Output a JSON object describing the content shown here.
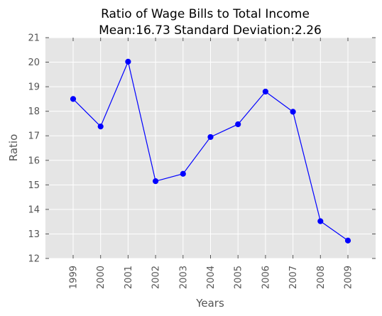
{
  "chart_data": {
    "type": "line",
    "title": "Ratio of Wage Bills to Total Income",
    "subtitle": "Mean:16.73 Standard Deviation:2.26",
    "xlabel": "Years",
    "ylabel": "Ratio",
    "ylim": [
      12,
      21
    ],
    "yticks": [
      "12",
      "13",
      "14",
      "15",
      "16",
      "17",
      "18",
      "19",
      "20",
      "21"
    ],
    "categories": [
      "1999",
      "2000",
      "2001",
      "2002",
      "2003",
      "2004",
      "2005",
      "2006",
      "2007",
      "2008",
      "2009"
    ],
    "series": [
      {
        "values": [
          18.5,
          17.38,
          20.02,
          15.15,
          15.45,
          16.95,
          17.47,
          18.8,
          17.98,
          13.52,
          12.73
        ],
        "color": "#0000ff",
        "marker": "circle"
      }
    ],
    "grid": true,
    "background": "#e5e5e5",
    "grid_color": "#ffffff"
  }
}
